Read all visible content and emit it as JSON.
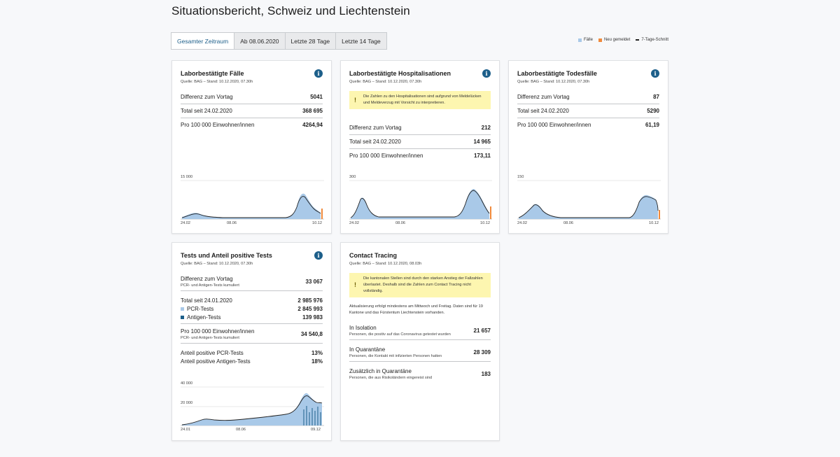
{
  "page": {
    "title": "Situationsbericht, Schweiz und Liechtenstein"
  },
  "range_tabs": [
    {
      "label": "Gesamter Zeitraum",
      "active": true
    },
    {
      "label": "Ab 08.06.2020",
      "active": false
    },
    {
      "label": "Letzte 28 Tage",
      "active": false
    },
    {
      "label": "Letzte 14 Tage",
      "active": false
    }
  ],
  "legend": {
    "cases": "Fälle",
    "new_reported": "Neu gemeldet",
    "avg7": "7-Tage-Schnitt",
    "colors": {
      "cases": "#a9c9e8",
      "new_reported": "#f08a3c",
      "avg7": "#222222"
    }
  },
  "colors": {
    "accent": "#1d5f8a",
    "notice": "#fdf6b0",
    "bar": "#a9c9e8",
    "bar_dark": "#1d5f8a"
  },
  "icons": {
    "info": "i",
    "warning": "!"
  },
  "cards": {
    "cases": {
      "title": "Laborbestätigte Fälle",
      "source": "Quelle: BAG – Stand: 10.12.2020, 07.30h",
      "rows": [
        {
          "label": "Differenz zum Vortag",
          "value": "5041"
        },
        {
          "label": "Total seit 24.02.2020",
          "value": "368 695"
        },
        {
          "label": "Pro 100 000 Einwohner/innen",
          "value": "4264,94"
        }
      ],
      "chart": {
        "ymax_label": "15 000",
        "x_labels": [
          "24.02",
          "08.06",
          "10.12"
        ]
      }
    },
    "hosp": {
      "title": "Laborbestätigte Hospitalisationen",
      "source": "Quelle: BAG – Stand: 10.12.2020, 07.30h",
      "notice": "Die Zahlen zu den Hospitalisationen sind aufgrund von Meldelücken und Meldeverzug mit Vorsicht zu interpretieren.",
      "rows": [
        {
          "label": "Differenz zum Vortag",
          "value": "212"
        },
        {
          "label": "Total seit 24.02.2020",
          "value": "14 965"
        },
        {
          "label": "Pro 100 000 Einwohner/innen",
          "value": "173,11"
        }
      ],
      "chart": {
        "ymax_label": "300",
        "x_labels": [
          "24.02",
          "08.06",
          "10.12"
        ]
      }
    },
    "deaths": {
      "title": "Laborbestätigte Todesfälle",
      "source": "Quelle: BAG – Stand: 10.12.2020, 07.30h",
      "rows": [
        {
          "label": "Differenz zum Vortag",
          "value": "87"
        },
        {
          "label": "Total seit 24.02.2020",
          "value": "5290"
        },
        {
          "label": "Pro 100 000 Einwohner/innen",
          "value": "61,19"
        }
      ],
      "chart": {
        "ymax_label": "150",
        "x_labels": [
          "24.02",
          "08.06",
          "10.12"
        ]
      }
    },
    "tests": {
      "title": "Tests und Anteil positive Tests",
      "source": "Quelle: BAG – Stand: 10.12.2020, 07.30h",
      "diff_label": "Differenz zum Vortag",
      "diff_sub": "PCR- und Antigen-Tests kumuliert",
      "diff_value": "33 067",
      "total_label": "Total seit 24.01.2020",
      "total_value": "2 985 976",
      "pcr_label": "PCR-Tests",
      "pcr_value": "2 845 993",
      "antigen_label": "Antigen-Tests",
      "antigen_value": "139 983",
      "per100k_label": "Pro 100 000 Einwohner/innen",
      "per100k_sub": "PCR- und Antigen-Tests kumuliert",
      "per100k_value": "34 540,8",
      "pos_pcr_label": "Anteil positive PCR-Tests",
      "pos_pcr_value": "13%",
      "pos_ag_label": "Anteil positive Antigen-Tests",
      "pos_ag_value": "18%",
      "chart": {
        "ymax_label": "40 000",
        "ymid_label": "20 000",
        "x_labels": [
          "24.01",
          "08.06",
          "09.12"
        ]
      }
    },
    "tracing": {
      "title": "Contact Tracing",
      "source": "Quelle: BAG – Stand: 10.12.2020, 08.03h",
      "notice": "Die kantonalen Stellen sind durch den starken Anstieg der Fallzahlen überlastet. Deshalb sind die Zahlen zum Contact Tracing nicht vollständig.",
      "info_text": "Aktualisierung erfolgt mindestens am Mittwoch und Freitag. Daten sind für 19 Kantone und das Fürstentum Liechtenstein vorhanden.",
      "rows": [
        {
          "label": "In Isolation",
          "sub": "Personen, die positiv auf das Coronavirus getestet wurden",
          "value": "21 657"
        },
        {
          "label": "In Quarantäne",
          "sub": "Personen, die Kontakt mit infizierten Personen hatten",
          "value": "28 309"
        },
        {
          "label": "Zusätzlich in Quarantäne",
          "sub": "Personen, die aus Risikoländern eingereist sind",
          "value": "183"
        }
      ]
    }
  }
}
